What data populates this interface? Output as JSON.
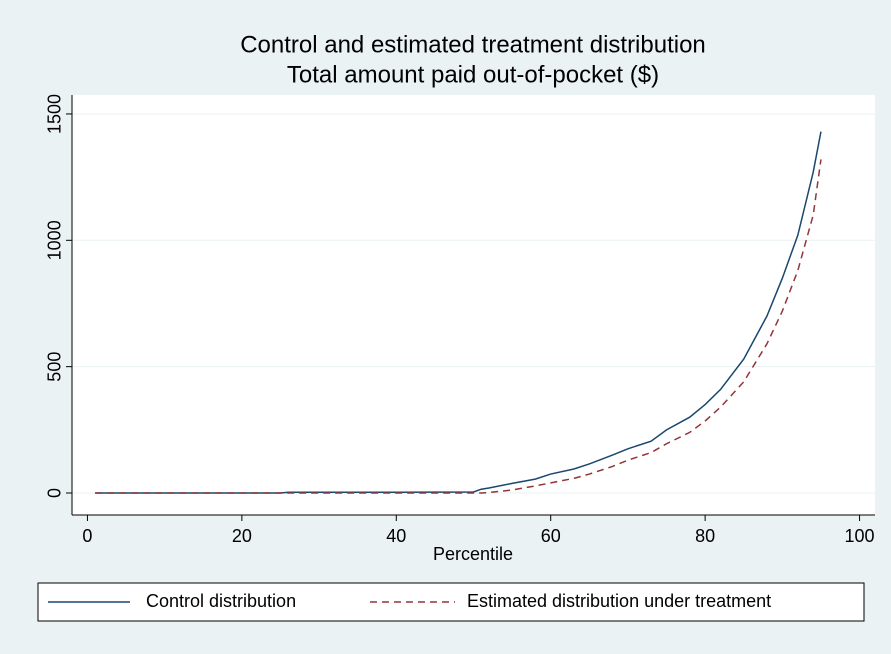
{
  "chart_data": {
    "type": "line",
    "title": [
      "Control and estimated treatment distribution",
      "Total amount paid out-of-pocket ($)"
    ],
    "x_label": "Percentile",
    "x": [
      1,
      10,
      20,
      25,
      26,
      30,
      40,
      50,
      51,
      52,
      55,
      58,
      60,
      63,
      65,
      68,
      70,
      73,
      75,
      78,
      80,
      82,
      85,
      88,
      90,
      92,
      94,
      95
    ],
    "series": [
      {
        "name": "Control distribution",
        "color": "#1a476f",
        "dash": false,
        "values": [
          0,
          0,
          0,
          0,
          3,
          3,
          3,
          4,
          15,
          20,
          38,
          55,
          75,
          95,
          115,
          150,
          175,
          205,
          250,
          300,
          350,
          410,
          530,
          700,
          850,
          1020,
          1270,
          1430
        ]
      },
      {
        "name": "Estimated distribution under treatment",
        "color": "#90353b",
        "dash": true,
        "values": [
          0,
          0,
          0,
          0,
          0,
          0,
          0,
          0,
          0,
          2,
          12,
          28,
          40,
          58,
          75,
          105,
          130,
          160,
          195,
          240,
          285,
          340,
          440,
          590,
          720,
          880,
          1100,
          1320
        ]
      }
    ],
    "xlim": [
      -2,
      102
    ],
    "xticks": [
      0,
      20,
      40,
      60,
      80,
      100
    ],
    "ylim": [
      -87,
      1575
    ],
    "yticks": [
      0,
      500,
      1000,
      1500
    ],
    "grid": true,
    "legend": "bottom"
  }
}
